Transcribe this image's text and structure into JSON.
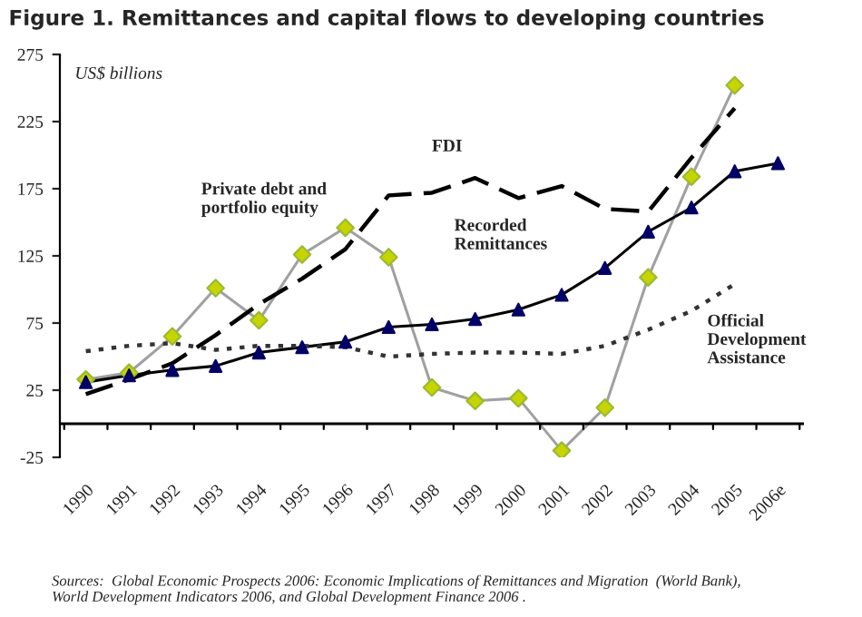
{
  "chart_data": {
    "type": "line",
    "title": "Figure 1. Remittances and capital flows to developing countries",
    "categories": [
      "1990",
      "1991",
      "1992",
      "1993",
      "1994",
      "1995",
      "1996",
      "1997",
      "1998",
      "1999",
      "2000",
      "2001",
      "2002",
      "2003",
      "2004",
      "2005",
      "2006e"
    ],
    "series": [
      {
        "color": "#a0a0a0",
        "marker": "diamond",
        "line_style": "solid",
        "values": [
          33,
          38,
          65,
          101,
          77,
          126,
          146,
          124,
          27,
          17,
          19,
          -20,
          12,
          109,
          184,
          252,
          null
        ]
      },
      {
        "color": "#000000",
        "marker": "triangle",
        "line_style": "solid",
        "values": [
          31,
          36,
          40,
          43,
          53,
          57,
          61,
          72,
          74,
          78,
          85,
          96,
          116,
          143,
          161,
          188,
          194
        ]
      },
      {
        "color": "#000000",
        "marker": "none",
        "line_style": "dashed",
        "values": [
          22,
          33,
          45,
          66,
          89,
          108,
          130,
          170,
          172,
          183,
          168,
          177,
          160,
          158,
          198,
          235,
          null
        ]
      },
      {
        "color": "#333333",
        "marker": "none",
        "line_style": "dotted",
        "values": [
          54,
          58,
          60,
          55,
          58,
          58,
          57,
          50,
          52,
          53,
          53,
          52,
          58,
          70,
          84,
          104,
          null
        ]
      }
    ],
    "ylim": [
      -25,
      275
    ],
    "yticks": [
      -25,
      25,
      75,
      125,
      175,
      225,
      275
    ],
    "grid": false,
    "legend": false,
    "annotations": [
      "US$ billions",
      "Private debt and\nportfolio equity",
      "FDI",
      "Recorded\nRemittances",
      "Official\nDevelopment\nAssistance",
      "Sources:  Global Economic Prospects 2006: Economic Implications of Remittances and Migration  (World Bank),\nWorld Development Indicators 2006, and Global Development Finance 2006 ."
    ]
  }
}
